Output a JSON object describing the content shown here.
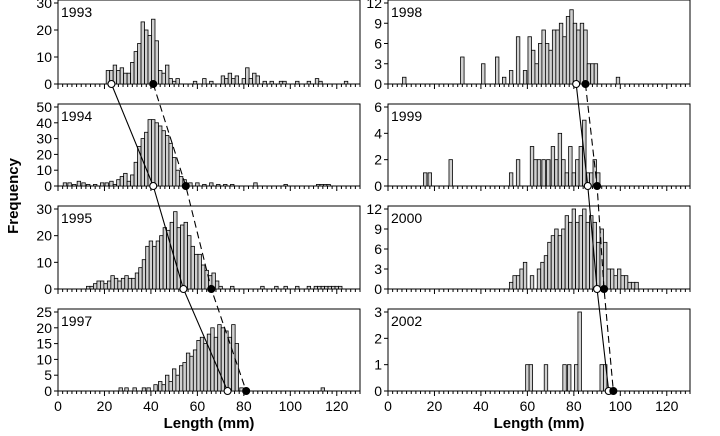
{
  "figure": {
    "ylabel": "Frequency",
    "xlabel_left": "Length (mm)",
    "xlabel_right": "Length (mm)",
    "x_ticks": [
      0,
      20,
      40,
      60,
      80,
      100,
      120
    ]
  },
  "chart_data": [
    {
      "type": "bar",
      "column": "left",
      "year": "1993",
      "xlim": [
        0,
        130
      ],
      "ylim": [
        0,
        30
      ],
      "yticks": [
        0,
        10,
        20,
        30
      ],
      "bin_width": 1.5,
      "bars": [
        [
          21.5,
          5
        ],
        [
          23,
          5
        ],
        [
          24.5,
          7
        ],
        [
          26,
          5
        ],
        [
          27.5,
          6
        ],
        [
          29,
          4
        ],
        [
          30.5,
          4
        ],
        [
          32,
          8
        ],
        [
          33.5,
          12
        ],
        [
          35,
          15
        ],
        [
          36.5,
          23
        ],
        [
          38,
          20
        ],
        [
          39.5,
          18
        ],
        [
          41,
          24
        ],
        [
          42.5,
          16
        ],
        [
          44,
          5
        ],
        [
          45.5,
          4
        ],
        [
          47,
          7
        ],
        [
          48.5,
          2
        ],
        [
          50,
          1
        ],
        [
          51.5,
          2
        ],
        [
          59,
          1
        ],
        [
          63,
          2
        ],
        [
          66,
          1
        ],
        [
          71,
          3
        ],
        [
          72.5,
          2
        ],
        [
          74,
          4
        ],
        [
          75.5,
          2
        ],
        [
          77,
          3
        ],
        [
          80,
          2
        ],
        [
          81.5,
          6
        ],
        [
          83,
          2
        ],
        [
          84.5,
          4
        ],
        [
          86,
          3
        ],
        [
          89,
          1
        ],
        [
          92,
          1
        ],
        [
          96,
          1
        ],
        [
          97.5,
          1
        ],
        [
          103,
          1
        ],
        [
          108,
          1
        ],
        [
          111.5,
          2
        ],
        [
          113,
          1
        ],
        [
          124,
          1
        ]
      ],
      "markers": {
        "open": 23,
        "filled": 41
      }
    },
    {
      "type": "bar",
      "column": "left",
      "year": "1994",
      "xlim": [
        0,
        130
      ],
      "ylim": [
        0,
        50
      ],
      "yticks": [
        0,
        10,
        20,
        30,
        40,
        50
      ],
      "bin_width": 1.5,
      "bars": [
        [
          3,
          2
        ],
        [
          5,
          2
        ],
        [
          7,
          1
        ],
        [
          9,
          3
        ],
        [
          11,
          2
        ],
        [
          13,
          1
        ],
        [
          16,
          1
        ],
        [
          19,
          2
        ],
        [
          21,
          2
        ],
        [
          23,
          3
        ],
        [
          24.5,
          1
        ],
        [
          26,
          4
        ],
        [
          27.5,
          6
        ],
        [
          29,
          8
        ],
        [
          30.5,
          3
        ],
        [
          32,
          7
        ],
        [
          33.5,
          15
        ],
        [
          35,
          25
        ],
        [
          36.5,
          30
        ],
        [
          38,
          34
        ],
        [
          39.5,
          42
        ],
        [
          41,
          42
        ],
        [
          42.5,
          40
        ],
        [
          44,
          38
        ],
        [
          45.5,
          35
        ],
        [
          47,
          32
        ],
        [
          48.5,
          27
        ],
        [
          50,
          18
        ],
        [
          51.5,
          10
        ],
        [
          53,
          6
        ],
        [
          54.5,
          4
        ],
        [
          57,
          2
        ],
        [
          60,
          2
        ],
        [
          63,
          1
        ],
        [
          66,
          2
        ],
        [
          69,
          1
        ],
        [
          72,
          1
        ],
        [
          75,
          1
        ],
        [
          85,
          2
        ],
        [
          98,
          1
        ],
        [
          112,
          1
        ],
        [
          113.5,
          1
        ],
        [
          115,
          1
        ],
        [
          116.5,
          1
        ]
      ],
      "markers": {
        "open": 41,
        "filled": 55
      }
    },
    {
      "type": "bar",
      "column": "left",
      "year": "1995",
      "xlim": [
        0,
        130
      ],
      "ylim": [
        0,
        30
      ],
      "yticks": [
        0,
        10,
        20,
        30
      ],
      "bin_width": 1.5,
      "bars": [
        [
          13,
          1
        ],
        [
          14.5,
          1
        ],
        [
          16,
          2
        ],
        [
          17.5,
          3
        ],
        [
          19,
          3
        ],
        [
          20.5,
          2
        ],
        [
          22,
          3
        ],
        [
          23.5,
          5
        ],
        [
          25,
          4
        ],
        [
          26.5,
          3
        ],
        [
          28,
          4
        ],
        [
          29.5,
          5
        ],
        [
          31,
          4
        ],
        [
          32.5,
          4
        ],
        [
          34,
          6
        ],
        [
          35.5,
          8
        ],
        [
          37,
          11
        ],
        [
          38.5,
          16
        ],
        [
          40,
          18
        ],
        [
          41.5,
          16
        ],
        [
          43,
          18
        ],
        [
          44.5,
          20
        ],
        [
          46,
          23
        ],
        [
          47.5,
          22
        ],
        [
          49,
          25
        ],
        [
          50.5,
          29
        ],
        [
          52,
          23
        ],
        [
          53.5,
          24
        ],
        [
          55,
          25
        ],
        [
          56.5,
          20
        ],
        [
          58,
          16
        ],
        [
          59.5,
          13
        ],
        [
          61,
          13
        ],
        [
          62.5,
          9
        ],
        [
          64,
          7
        ],
        [
          65.5,
          5
        ],
        [
          67,
          6
        ],
        [
          68.5,
          3
        ],
        [
          70,
          1
        ],
        [
          75,
          1
        ],
        [
          88,
          1
        ],
        [
          94,
          1
        ],
        [
          98,
          1
        ],
        [
          103,
          1
        ],
        [
          108,
          1
        ],
        [
          111,
          1
        ],
        [
          112.5,
          1
        ],
        [
          114,
          1
        ],
        [
          115.5,
          1
        ],
        [
          117,
          1
        ],
        [
          118.5,
          1
        ],
        [
          120,
          1
        ],
        [
          121.5,
          1
        ]
      ],
      "markers": {
        "open": 54,
        "filled": 66
      }
    },
    {
      "type": "bar",
      "column": "left",
      "year": "1997",
      "xlim": [
        0,
        130
      ],
      "ylim": [
        0,
        25
      ],
      "yticks": [
        0,
        5,
        10,
        15,
        20,
        25
      ],
      "bin_width": 1.5,
      "bars": [
        [
          27,
          1
        ],
        [
          29.5,
          1
        ],
        [
          33,
          1
        ],
        [
          37,
          1
        ],
        [
          39,
          1
        ],
        [
          42,
          2
        ],
        [
          44,
          3
        ],
        [
          45.5,
          2
        ],
        [
          47,
          5
        ],
        [
          48.5,
          3
        ],
        [
          50,
          7
        ],
        [
          51.5,
          5
        ],
        [
          53,
          8
        ],
        [
          54.5,
          9
        ],
        [
          56,
          12
        ],
        [
          57.5,
          11
        ],
        [
          59,
          13
        ],
        [
          60.5,
          16
        ],
        [
          62,
          17
        ],
        [
          63.5,
          15
        ],
        [
          65,
          18
        ],
        [
          66.5,
          20
        ],
        [
          68,
          17
        ],
        [
          69.5,
          21
        ],
        [
          71,
          20
        ],
        [
          72.5,
          19
        ],
        [
          74,
          17
        ],
        [
          75.5,
          21
        ],
        [
          77,
          15
        ],
        [
          79,
          1
        ],
        [
          114,
          1
        ]
      ],
      "markers": {
        "open": 73,
        "filled": 81
      }
    },
    {
      "type": "bar",
      "column": "right",
      "year": "1998",
      "xlim": [
        0,
        130
      ],
      "ylim": [
        0,
        12
      ],
      "yticks": [
        0,
        3,
        6,
        9,
        12
      ],
      "bin_width": 1.5,
      "bars": [
        [
          7,
          1
        ],
        [
          32,
          4
        ],
        [
          41,
          3
        ],
        [
          47,
          4
        ],
        [
          50,
          1
        ],
        [
          53,
          2
        ],
        [
          56,
          7
        ],
        [
          59,
          2
        ],
        [
          61,
          7
        ],
        [
          62.5,
          5
        ],
        [
          64,
          3
        ],
        [
          65.5,
          6
        ],
        [
          67,
          8
        ],
        [
          68.5,
          6
        ],
        [
          70,
          5
        ],
        [
          71.5,
          8
        ],
        [
          73,
          8
        ],
        [
          74.5,
          9
        ],
        [
          76,
          7
        ],
        [
          77.5,
          10
        ],
        [
          79,
          11
        ],
        [
          80.5,
          9
        ],
        [
          82,
          8
        ],
        [
          83.5,
          9
        ],
        [
          85,
          8
        ],
        [
          86.5,
          3
        ],
        [
          88,
          3
        ],
        [
          89.5,
          3
        ],
        [
          99,
          1
        ]
      ],
      "markers": {
        "open": 81,
        "filled": 85
      }
    },
    {
      "type": "bar",
      "column": "right",
      "year": "1999",
      "xlim": [
        0,
        130
      ],
      "ylim": [
        0,
        6
      ],
      "yticks": [
        0,
        2,
        4,
        6
      ],
      "bin_width": 1.5,
      "bars": [
        [
          16,
          1
        ],
        [
          18,
          1
        ],
        [
          27,
          2
        ],
        [
          53,
          1
        ],
        [
          56,
          2
        ],
        [
          62,
          3
        ],
        [
          63.5,
          2
        ],
        [
          65,
          2
        ],
        [
          67,
          2
        ],
        [
          69,
          2
        ],
        [
          71,
          3
        ],
        [
          72.5,
          2
        ],
        [
          74,
          4
        ],
        [
          75.5,
          2
        ],
        [
          77,
          1
        ],
        [
          78.5,
          3
        ],
        [
          80,
          1
        ],
        [
          81.5,
          2
        ],
        [
          83,
          3
        ],
        [
          84.5,
          5
        ],
        [
          86,
          1
        ],
        [
          87.5,
          1
        ],
        [
          89,
          2
        ],
        [
          90.5,
          1
        ]
      ],
      "markers": {
        "open": 86,
        "filled": 90
      }
    },
    {
      "type": "bar",
      "column": "right",
      "year": "2000",
      "xlim": [
        0,
        130
      ],
      "ylim": [
        0,
        12
      ],
      "yticks": [
        0,
        3,
        6,
        9,
        12
      ],
      "bin_width": 1.5,
      "bars": [
        [
          53,
          1
        ],
        [
          54.5,
          2
        ],
        [
          56,
          2
        ],
        [
          57.5,
          3
        ],
        [
          59,
          4
        ],
        [
          62,
          2
        ],
        [
          65,
          3
        ],
        [
          66.5,
          4
        ],
        [
          68,
          5
        ],
        [
          69.5,
          7
        ],
        [
          71,
          8
        ],
        [
          72.5,
          9
        ],
        [
          74,
          8
        ],
        [
          75.5,
          9
        ],
        [
          77,
          11
        ],
        [
          78.5,
          10
        ],
        [
          80,
          12
        ],
        [
          81.5,
          10
        ],
        [
          83,
          11
        ],
        [
          84.5,
          12
        ],
        [
          86,
          10
        ],
        [
          87.5,
          11
        ],
        [
          89,
          10
        ],
        [
          90.5,
          7
        ],
        [
          92,
          9
        ],
        [
          93.5,
          7
        ],
        [
          95,
          3
        ],
        [
          96.5,
          3
        ],
        [
          98,
          2
        ],
        [
          99.5,
          3
        ],
        [
          101,
          2
        ],
        [
          102.5,
          2
        ],
        [
          104,
          1
        ],
        [
          105.5,
          1
        ],
        [
          107,
          1
        ]
      ],
      "markers": {
        "open": 90,
        "filled": 93
      }
    },
    {
      "type": "bar",
      "column": "right",
      "year": "2002",
      "xlim": [
        0,
        130
      ],
      "ylim": [
        0,
        3
      ],
      "yticks": [
        0,
        1,
        2,
        3
      ],
      "bin_width": 1.5,
      "bars": [
        [
          60,
          1
        ],
        [
          61.5,
          1
        ],
        [
          68,
          1
        ],
        [
          76,
          1
        ],
        [
          78,
          1
        ],
        [
          81,
          1
        ],
        [
          82.5,
          3
        ],
        [
          92,
          1
        ],
        [
          93.5,
          1
        ]
      ],
      "markers": {
        "open": 95,
        "filled": 97
      }
    }
  ],
  "growth_lines": [
    {
      "column": "left",
      "style": "solid",
      "marker": "open",
      "years": [
        "1993",
        "1994",
        "1995",
        "1997"
      ]
    },
    {
      "column": "left",
      "style": "dashed",
      "marker": "filled",
      "years": [
        "1993",
        "1994",
        "1995",
        "1997"
      ]
    },
    {
      "column": "right",
      "style": "solid",
      "marker": "open",
      "years": [
        "1998",
        "1999",
        "2000",
        "2002"
      ]
    },
    {
      "column": "right",
      "style": "dashed",
      "marker": "filled",
      "years": [
        "1998",
        "1999",
        "2000",
        "2002"
      ]
    }
  ]
}
